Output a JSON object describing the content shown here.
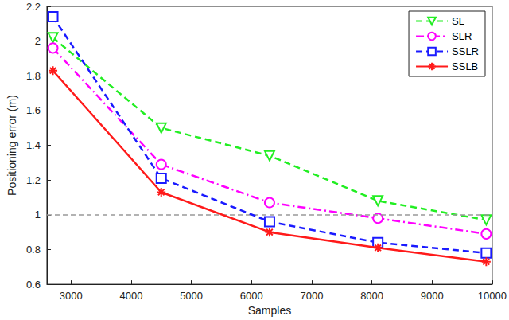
{
  "chart_data": {
    "type": "line",
    "x_label": "Samples",
    "y_label": "Positioning error (m)",
    "xlim": [
      2600,
      10000
    ],
    "xticks": [
      3000,
      4000,
      5000,
      6000,
      7000,
      8000,
      9000,
      10000
    ],
    "ylim": [
      0.6,
      2.2
    ],
    "yticks": [
      0.6,
      0.8,
      1,
      1.2,
      1.4,
      1.6,
      1.8,
      2,
      2.2
    ],
    "grid": false,
    "legend": "top-right",
    "hlines": [
      1
    ],
    "x": [
      2700,
      4500,
      6300,
      8100,
      9900
    ],
    "series": [
      {
        "name": "SL",
        "color": "#22ee22",
        "marker": "triangle-down",
        "line_style": "dashed",
        "values": [
          2.02,
          1.5,
          1.34,
          1.08,
          0.97
        ]
      },
      {
        "name": "SLR",
        "color": "#ff00ff",
        "marker": "circle",
        "line_style": "dashdot",
        "values": [
          1.96,
          1.29,
          1.07,
          0.98,
          0.89
        ]
      },
      {
        "name": "SSLR",
        "color": "#1a1aff",
        "marker": "square",
        "line_style": "dashed",
        "values": [
          2.14,
          1.21,
          0.96,
          0.84,
          0.78
        ]
      },
      {
        "name": "SSLB",
        "color": "#ff1a1a",
        "marker": "asterisk",
        "line_style": "solid",
        "values": [
          1.83,
          1.13,
          0.9,
          0.81,
          0.73
        ]
      }
    ]
  }
}
